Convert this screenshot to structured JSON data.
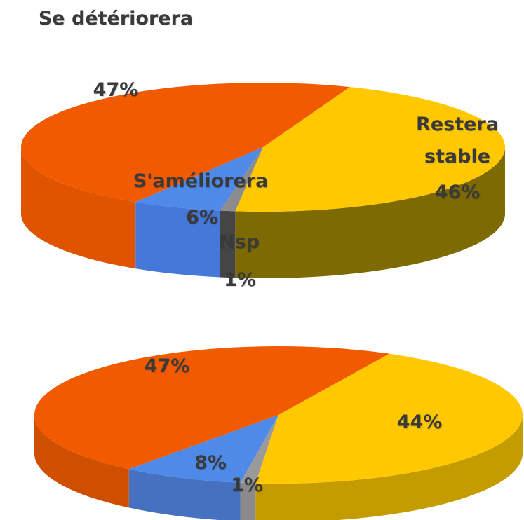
{
  "chart_data": [
    {
      "type": "pie",
      "categories": [
        "Restera stable",
        "Nsp",
        "S'améliorera",
        "Se détériorera"
      ],
      "values": [
        46,
        1,
        6,
        47
      ],
      "value_labels": [
        "46%",
        "1%",
        "6%",
        "47%"
      ],
      "colors": [
        "#ffc800",
        "#8c8c8c",
        "#4f8ae8",
        "#f25a00"
      ],
      "side_colors": [
        "#7d6a00",
        "#454545",
        "#4578d8",
        "#e05400"
      ]
    },
    {
      "type": "pie",
      "categories": [
        null,
        null,
        null,
        null
      ],
      "values": [
        44,
        1,
        8,
        47
      ],
      "value_labels": [
        "44%",
        "1%",
        "8%",
        "47%"
      ],
      "colors": [
        "#ffc800",
        "#9a9a9a",
        "#4f8ae8",
        "#f25a00"
      ],
      "side_colors": [
        "#c49c00",
        "#8a8a8a",
        "#4670c0",
        "#d04e00"
      ]
    }
  ]
}
